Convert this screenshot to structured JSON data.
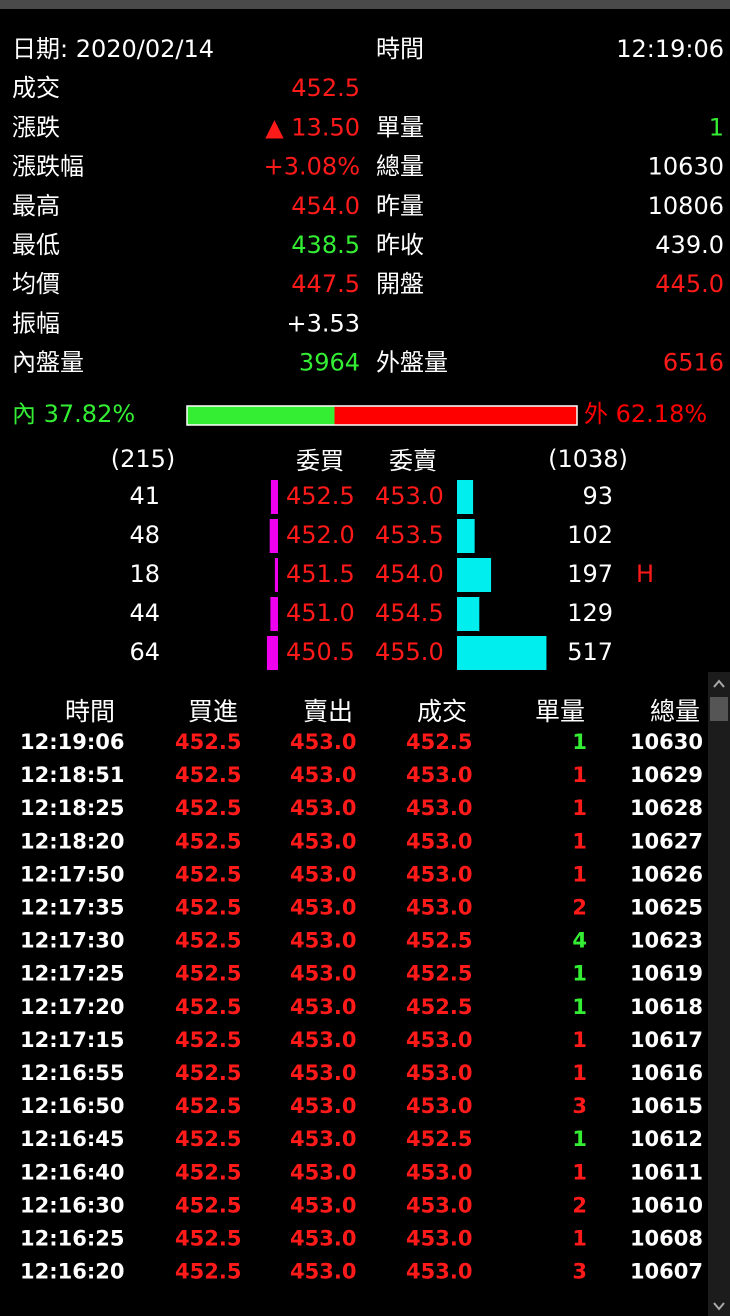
{
  "info": {
    "rows": [
      {
        "label": "日期: 2020/02/14",
        "label2": "時間",
        "value2": "12:19:06"
      },
      {
        "label": "成交",
        "value": "452.5",
        "value_color": "#ff1a1a"
      },
      {
        "label": "漲跌",
        "value": "▲ 13.50",
        "value_color": "#ff1a1a",
        "label2": "單量",
        "value2": "1",
        "value2_color": "#33ee33"
      },
      {
        "label": "漲跌幅",
        "value": "+3.08%",
        "value_color": "#ff1a1a",
        "label2": "總量",
        "value2": "10630"
      },
      {
        "label": "最高",
        "value": "454.0",
        "value_color": "#ff1a1a",
        "label2": "昨量",
        "value2": "10806"
      },
      {
        "label": "最低",
        "value": "438.5",
        "value_color": "#33ee33",
        "label2": "昨收",
        "value2": "439.0"
      },
      {
        "label": "均價",
        "value": "447.5",
        "value_color": "#ff1a1a",
        "label2": "開盤",
        "value2": "445.0",
        "value2_color": "#ff1a1a"
      },
      {
        "label": "振幅",
        "value": "+3.53"
      },
      {
        "label": "內盤量",
        "value": "3964",
        "value_color": "#33ee33",
        "label2": "外盤量",
        "value2": "6516",
        "value2_color": "#ff1a1a"
      }
    ]
  },
  "ratio": {
    "inner": {
      "value": 37.82,
      "label": "內 37.82%",
      "color": "#33ee33"
    },
    "outer": {
      "value": 62.18,
      "label": "外 62.18%",
      "color": "#ff0000"
    }
  },
  "book": {
    "bid_total": "(215)",
    "ask_total": "(1038)",
    "headers": [
      "委買",
      "委賣"
    ],
    "bid_color": "#ee00ee",
    "ask_color": "#00eeee",
    "bids": [
      {
        "price": "452.5",
        "volume": 41
      },
      {
        "price": "452.0",
        "volume": 48
      },
      {
        "price": "451.5",
        "volume": 18
      },
      {
        "price": "451.0",
        "volume": 44
      },
      {
        "price": "450.5",
        "volume": 64
      }
    ],
    "asks": [
      {
        "price": "453.0",
        "volume": 93
      },
      {
        "price": "453.5",
        "volume": 102
      },
      {
        "price": "454.0",
        "volume": 197,
        "flag": "H"
      },
      {
        "price": "454.5",
        "volume": 129
      },
      {
        "price": "455.0",
        "volume": 517
      }
    ]
  },
  "trades": {
    "headers": [
      "時間",
      "買進",
      "賣出",
      "成交",
      "單量",
      "總量"
    ],
    "rows": [
      {
        "time": "12:19:06",
        "buy": "452.5",
        "sell": "453.0",
        "deal": "452.5",
        "qty": "1",
        "total": "10630",
        "qty_color": "#33ee33"
      },
      {
        "time": "12:18:51",
        "buy": "452.5",
        "sell": "453.0",
        "deal": "453.0",
        "qty": "1",
        "total": "10629",
        "qty_color": "#ff1a1a"
      },
      {
        "time": "12:18:25",
        "buy": "452.5",
        "sell": "453.0",
        "deal": "453.0",
        "qty": "1",
        "total": "10628",
        "qty_color": "#ff1a1a"
      },
      {
        "time": "12:18:20",
        "buy": "452.5",
        "sell": "453.0",
        "deal": "453.0",
        "qty": "1",
        "total": "10627",
        "qty_color": "#ff1a1a"
      },
      {
        "time": "12:17:50",
        "buy": "452.5",
        "sell": "453.0",
        "deal": "453.0",
        "qty": "1",
        "total": "10626",
        "qty_color": "#ff1a1a"
      },
      {
        "time": "12:17:35",
        "buy": "452.5",
        "sell": "453.0",
        "deal": "453.0",
        "qty": "2",
        "total": "10625",
        "qty_color": "#ff1a1a"
      },
      {
        "time": "12:17:30",
        "buy": "452.5",
        "sell": "453.0",
        "deal": "452.5",
        "qty": "4",
        "total": "10623",
        "qty_color": "#33ee33"
      },
      {
        "time": "12:17:25",
        "buy": "452.5",
        "sell": "453.0",
        "deal": "452.5",
        "qty": "1",
        "total": "10619",
        "qty_color": "#33ee33"
      },
      {
        "time": "12:17:20",
        "buy": "452.5",
        "sell": "453.0",
        "deal": "452.5",
        "qty": "1",
        "total": "10618",
        "qty_color": "#33ee33"
      },
      {
        "time": "12:17:15",
        "buy": "452.5",
        "sell": "453.0",
        "deal": "453.0",
        "qty": "1",
        "total": "10617",
        "qty_color": "#ff1a1a"
      },
      {
        "time": "12:16:55",
        "buy": "452.5",
        "sell": "453.0",
        "deal": "453.0",
        "qty": "1",
        "total": "10616",
        "qty_color": "#ff1a1a"
      },
      {
        "time": "12:16:50",
        "buy": "452.5",
        "sell": "453.0",
        "deal": "453.0",
        "qty": "3",
        "total": "10615",
        "qty_color": "#ff1a1a"
      },
      {
        "time": "12:16:45",
        "buy": "452.5",
        "sell": "453.0",
        "deal": "452.5",
        "qty": "1",
        "total": "10612",
        "qty_color": "#33ee33"
      },
      {
        "time": "12:16:40",
        "buy": "452.5",
        "sell": "453.0",
        "deal": "453.0",
        "qty": "1",
        "total": "10611",
        "qty_color": "#ff1a1a"
      },
      {
        "time": "12:16:30",
        "buy": "452.5",
        "sell": "453.0",
        "deal": "453.0",
        "qty": "2",
        "total": "10610",
        "qty_color": "#ff1a1a"
      },
      {
        "time": "12:16:25",
        "buy": "452.5",
        "sell": "453.0",
        "deal": "453.0",
        "qty": "1",
        "total": "10608",
        "qty_color": "#ff1a1a"
      },
      {
        "time": "12:16:20",
        "buy": "452.5",
        "sell": "453.0",
        "deal": "453.0",
        "qty": "3",
        "total": "10607",
        "qty_color": "#ff1a1a"
      }
    ]
  }
}
